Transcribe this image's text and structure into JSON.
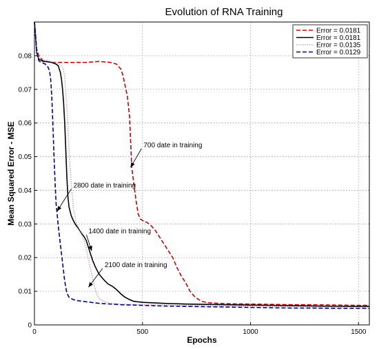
{
  "chart_data": {
    "type": "line",
    "title": "Evolution of RNA Training",
    "xlabel": "Epochs",
    "ylabel": "Mean Squared Error - MSE",
    "xlim": [
      0,
      1550
    ],
    "ylim": [
      0,
      0.09
    ],
    "x_ticks": [
      0,
      500,
      1000,
      1500
    ],
    "y_ticks": [
      0,
      0.01,
      0.02,
      0.03,
      0.04,
      0.05,
      0.06,
      0.07,
      0.08
    ],
    "x_tick_labels": [
      "0",
      "500",
      "1000",
      "1500"
    ],
    "y_tick_labels": [
      "0",
      "0.01",
      "0.02",
      "0.03",
      "0.04",
      "0.05",
      "0.06",
      "0.07",
      "0.08"
    ],
    "grid": true,
    "legend_position": "top-right",
    "series": [
      {
        "name": "Error = 0.0181",
        "color": "#cc0000",
        "dash": "dashed",
        "x": [
          0,
          5,
          10,
          20,
          40,
          80,
          120,
          180,
          240,
          300,
          350,
          380,
          400,
          410,
          420,
          430,
          440,
          445,
          450,
          460,
          470,
          480,
          490,
          500,
          520,
          540,
          560,
          580,
          600,
          620,
          640,
          660,
          680,
          700,
          720,
          740,
          760,
          780,
          800,
          850,
          900,
          1000,
          1100,
          1200,
          1300,
          1400,
          1500,
          1550
        ],
        "y": [
          0.09,
          0.086,
          0.082,
          0.08,
          0.0785,
          0.078,
          0.078,
          0.078,
          0.078,
          0.0783,
          0.078,
          0.0775,
          0.076,
          0.074,
          0.071,
          0.068,
          0.062,
          0.055,
          0.047,
          0.042,
          0.037,
          0.033,
          0.0315,
          0.031,
          0.0305,
          0.0295,
          0.028,
          0.026,
          0.024,
          0.022,
          0.02,
          0.017,
          0.0145,
          0.0125,
          0.01,
          0.0085,
          0.0075,
          0.0069,
          0.0066,
          0.0064,
          0.0063,
          0.0062,
          0.0061,
          0.006,
          0.006,
          0.0059,
          0.0058,
          0.0058
        ]
      },
      {
        "name": "Error = 0.0181",
        "color": "#000000",
        "dash": "solid",
        "x": [
          0,
          5,
          10,
          20,
          40,
          60,
          80,
          100,
          110,
          120,
          125,
          130,
          135,
          140,
          145,
          150,
          155,
          160,
          170,
          180,
          190,
          200,
          210,
          220,
          230,
          240,
          250,
          260,
          270,
          280,
          290,
          300,
          320,
          340,
          360,
          380,
          400,
          420,
          440,
          460,
          500,
          600,
          700,
          800,
          900,
          1000,
          1100,
          1200,
          1300,
          1400,
          1500,
          1550
        ],
        "y": [
          0.09,
          0.086,
          0.081,
          0.079,
          0.0783,
          0.0782,
          0.078,
          0.0775,
          0.077,
          0.075,
          0.073,
          0.07,
          0.066,
          0.06,
          0.052,
          0.044,
          0.038,
          0.035,
          0.0325,
          0.031,
          0.0298,
          0.029,
          0.028,
          0.027,
          0.0262,
          0.025,
          0.023,
          0.021,
          0.019,
          0.0175,
          0.0162,
          0.015,
          0.0135,
          0.0122,
          0.0115,
          0.0105,
          0.0092,
          0.0082,
          0.0075,
          0.007,
          0.0067,
          0.0064,
          0.0062,
          0.0061,
          0.006,
          0.0059,
          0.0058,
          0.0057,
          0.0056,
          0.0055,
          0.0055,
          0.0055
        ]
      },
      {
        "name": "Error = 0.0135",
        "color": "#d98ca6",
        "dash": "dotted",
        "x": [
          0,
          5,
          10,
          20,
          40,
          60,
          80,
          100,
          110,
          120,
          130,
          140,
          150,
          160,
          170,
          180,
          190,
          200,
          210,
          220,
          230,
          240,
          250,
          260,
          270,
          280,
          290,
          300,
          320,
          350,
          400,
          500,
          600,
          700,
          800,
          900,
          1000,
          1100,
          1200,
          1300,
          1400,
          1500,
          1550
        ],
        "y": [
          0.09,
          0.086,
          0.081,
          0.0795,
          0.0788,
          0.0785,
          0.0782,
          0.0778,
          0.0775,
          0.0772,
          0.0765,
          0.074,
          0.065,
          0.052,
          0.042,
          0.035,
          0.031,
          0.0295,
          0.028,
          0.0265,
          0.025,
          0.0225,
          0.0195,
          0.0165,
          0.0135,
          0.011,
          0.009,
          0.0078,
          0.007,
          0.0065,
          0.0062,
          0.006,
          0.0059,
          0.0058,
          0.0057,
          0.0056,
          0.0055,
          0.0055,
          0.0054,
          0.0053,
          0.0053,
          0.0052,
          0.0052
        ]
      },
      {
        "name": "Error = 0.0129",
        "color": "#00008b",
        "dash": "dashed",
        "x": [
          0,
          5,
          10,
          15,
          20,
          30,
          40,
          50,
          60,
          70,
          75,
          80,
          85,
          90,
          95,
          100,
          105,
          110,
          120,
          130,
          140,
          150,
          160,
          180,
          200,
          250,
          300,
          400,
          500,
          600,
          700,
          800,
          900,
          1000,
          1100,
          1200,
          1300,
          1400,
          1500,
          1550
        ],
        "y": [
          0.09,
          0.086,
          0.082,
          0.0795,
          0.0785,
          0.078,
          0.0778,
          0.0775,
          0.077,
          0.0755,
          0.073,
          0.068,
          0.06,
          0.051,
          0.043,
          0.036,
          0.033,
          0.0295,
          0.024,
          0.0185,
          0.013,
          0.0095,
          0.0082,
          0.0075,
          0.0072,
          0.0068,
          0.0064,
          0.006,
          0.0058,
          0.0056,
          0.0055,
          0.0054,
          0.0053,
          0.0052,
          0.0051,
          0.005,
          0.005,
          0.0049,
          0.0049,
          0.0049
        ]
      }
    ],
    "annotations": [
      {
        "text": "700 date in training",
        "text_x": 505,
        "text_y": 0.0528,
        "arrow_x": 445,
        "arrow_y": 0.0468
      },
      {
        "text": "2800 date in training",
        "text_x": 180,
        "text_y": 0.0408,
        "arrow_x": 105,
        "arrow_y": 0.0338
      },
      {
        "text": "1400 date in training",
        "text_x": 250,
        "text_y": 0.0272,
        "arrow_x": 265,
        "arrow_y": 0.022
      },
      {
        "text": "2100 date in training",
        "text_x": 325,
        "text_y": 0.0172,
        "arrow_x": 250,
        "arrow_y": 0.0112
      }
    ]
  }
}
